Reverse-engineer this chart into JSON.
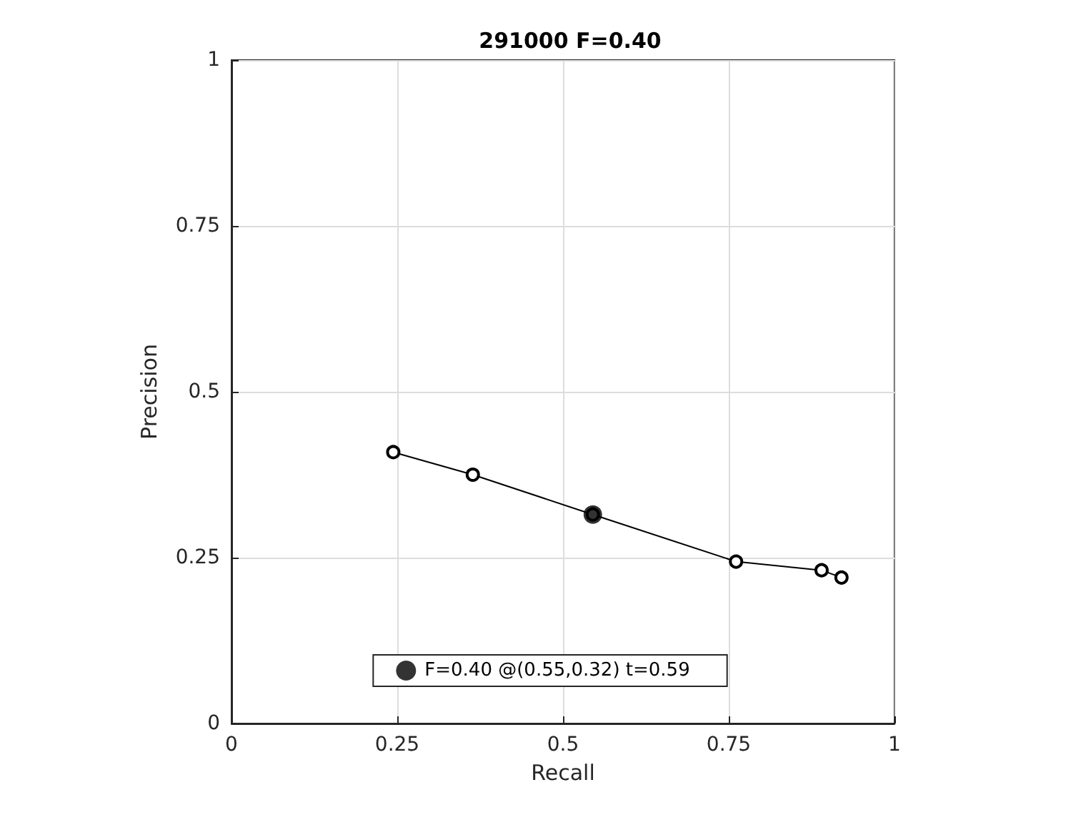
{
  "chart_data": {
    "type": "line",
    "title": "291000 F=0.40",
    "xlabel": "Recall",
    "ylabel": "Precision",
    "xlim": [
      0,
      1
    ],
    "ylim": [
      0,
      1
    ],
    "xticks": [
      0,
      0.25,
      0.5,
      0.75,
      1
    ],
    "yticks": [
      0,
      0.25,
      0.5,
      0.75,
      1
    ],
    "grid": true,
    "legend": "bottom",
    "series": [
      {
        "color": "#000000",
        "marker": "circle",
        "x": [
          0.244,
          0.364,
          0.545,
          0.761,
          0.89,
          0.92
        ],
        "values": [
          0.409,
          0.375,
          0.315,
          0.244,
          0.231,
          0.22
        ]
      },
      {
        "type": "scatter",
        "name": "F=0.40 @(0.55,0.32) t=0.59",
        "color": "#000000",
        "marker": "circle",
        "x": [
          0.545
        ],
        "values": [
          0.315
        ]
      }
    ]
  }
}
